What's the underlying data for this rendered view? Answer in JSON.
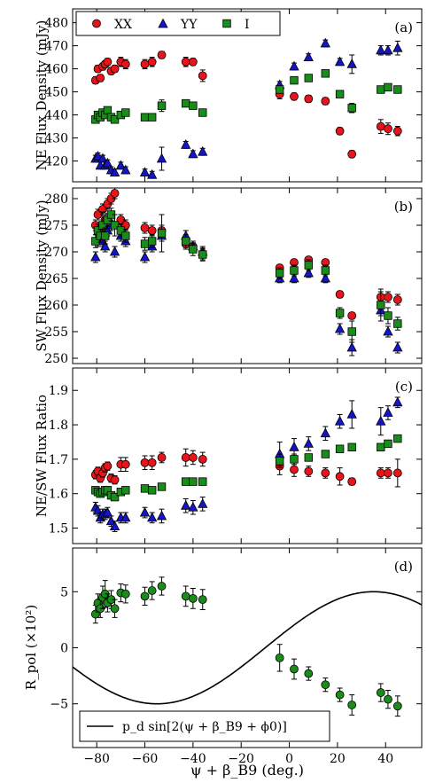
{
  "figure": {
    "xlabel": "ψ + β_B9 (deg.)",
    "xlim": [
      -90,
      55
    ],
    "xticks": [
      -80,
      -60,
      -40,
      -20,
      0,
      20,
      40
    ]
  },
  "colors": {
    "XX": "#e8141c",
    "YY": "#1414c8",
    "I": "#1a8c1a",
    "model": "#000000"
  },
  "chart_data": [
    {
      "id": "a",
      "type": "scatter",
      "panel_label": "(a)",
      "ylabel": "NE Flux Density (mJy)",
      "ylim": [
        411,
        486
      ],
      "yticks": [
        420,
        430,
        440,
        450,
        460,
        470,
        480
      ],
      "legend": {
        "placement": "top-left",
        "entries": [
          "XX",
          "YY",
          "I"
        ]
      },
      "x": [
        -80.5,
        -79.5,
        -78.5,
        -77.5,
        -76.5,
        -75.5,
        -74,
        -72.5,
        -70,
        -68,
        -60,
        -57,
        -53,
        -43,
        -40,
        -36,
        -4,
        2,
        8,
        15,
        21,
        26,
        38,
        41,
        45
      ],
      "series": [
        {
          "name": "XX",
          "marker": "circle",
          "values": [
            455,
            460,
            456,
            461,
            462,
            463,
            459,
            460,
            463,
            462,
            462,
            463,
            466,
            463,
            463,
            457,
            449,
            448,
            447,
            446,
            433,
            423,
            435,
            434,
            433
          ],
          "err": [
            1.5,
            1.5,
            1.5,
            1.5,
            1.5,
            1.5,
            1.5,
            1.5,
            2,
            2,
            2,
            2,
            1.5,
            2,
            1.5,
            2.5,
            2,
            1.5,
            1.5,
            1.5,
            1.5,
            1.5,
            3,
            2.5,
            2
          ]
        },
        {
          "name": "YY",
          "marker": "triangle",
          "values": [
            421,
            422,
            418,
            421,
            418,
            419,
            416,
            415,
            418,
            416,
            415,
            414,
            421,
            427,
            423,
            424,
            453,
            461,
            465,
            471,
            463,
            462,
            468,
            468,
            469
          ],
          "err": [
            1.5,
            1.5,
            1.5,
            1.5,
            1.5,
            1.5,
            1.5,
            1.5,
            1.5,
            1.5,
            1.5,
            1.5,
            5,
            1.5,
            1.5,
            1.5,
            1.5,
            1.5,
            1.5,
            1.5,
            1.5,
            4,
            2,
            2,
            3
          ]
        },
        {
          "name": "I",
          "marker": "square",
          "values": [
            438,
            440,
            439,
            441,
            440,
            442,
            439,
            438,
            440,
            441,
            439,
            439,
            444,
            445,
            444,
            441,
            451,
            455,
            456,
            458,
            449,
            443,
            451,
            452,
            451
          ],
          "err": [
            1,
            1,
            1,
            1,
            1,
            1,
            1,
            1,
            1,
            1,
            1,
            1,
            2.5,
            1,
            1,
            1,
            1,
            1,
            1,
            1,
            1,
            2,
            1.5,
            1.5,
            1.5
          ]
        }
      ]
    },
    {
      "id": "b",
      "type": "scatter",
      "panel_label": "(b)",
      "ylabel": "SW Flux Density (mJy)",
      "ylim": [
        249,
        282
      ],
      "yticks": [
        250,
        255,
        260,
        265,
        270,
        275,
        280
      ],
      "x": [
        -80.5,
        -79.5,
        -78.5,
        -77.5,
        -76.5,
        -75.5,
        -74,
        -72.5,
        -70,
        -68,
        -60,
        -57,
        -53,
        -43,
        -40,
        -36,
        -4,
        2,
        8,
        15,
        21,
        26,
        38,
        41,
        45
      ],
      "series": [
        {
          "name": "XX",
          "marker": "circle",
          "values": [
            275,
            277,
            274,
            278,
            276,
            279,
            280,
            281,
            276,
            275,
            274.5,
            274,
            274,
            271.5,
            271,
            269.5,
            267,
            268,
            268.5,
            268,
            262,
            258,
            261.5,
            261.5,
            261
          ],
          "err": [
            1,
            1,
            1,
            1,
            1,
            1,
            1,
            1,
            1,
            1,
            1,
            1,
            1,
            1,
            1,
            1,
            0.6,
            0.6,
            0.6,
            0.6,
            0.6,
            0.6,
            1,
            1,
            1
          ]
        },
        {
          "name": "YY",
          "marker": "triangle",
          "values": [
            269,
            272,
            273,
            272,
            271,
            274,
            275,
            270,
            273,
            272,
            269,
            271,
            273,
            273,
            271,
            270,
            265,
            265,
            266,
            265,
            255.5,
            252,
            259,
            255,
            252
          ],
          "err": [
            1,
            1,
            1,
            1,
            1,
            1,
            1,
            1,
            1,
            1,
            1,
            1,
            1,
            1,
            1,
            1,
            0.8,
            0.8,
            0.8,
            0.8,
            1,
            1.5,
            1,
            1,
            1
          ]
        },
        {
          "name": "I",
          "marker": "square",
          "values": [
            272,
            274,
            273,
            275,
            273,
            276,
            277,
            275,
            274,
            273,
            271.5,
            272,
            273.5,
            272,
            270.5,
            269.5,
            266,
            266.5,
            267.5,
            266.5,
            258.5,
            255,
            260,
            258,
            256.5
          ],
          "err": [
            1.2,
            1.2,
            1.2,
            2.5,
            1.5,
            1.2,
            1.2,
            2,
            1.2,
            1.2,
            1.2,
            1.2,
            3.5,
            1.2,
            1.2,
            1.2,
            1,
            1,
            1,
            1,
            1,
            2,
            3,
            1.5,
            1.2
          ]
        }
      ]
    },
    {
      "id": "c",
      "type": "scatter",
      "panel_label": "(c)",
      "ylabel": "NE/SW Flux Ratio",
      "ylim": [
        1.455,
        1.965
      ],
      "yticks": [
        1.5,
        1.6,
        1.7,
        1.8,
        1.9
      ],
      "x": [
        -80.5,
        -79.5,
        -78.5,
        -77.5,
        -76.5,
        -75.5,
        -74,
        -72.5,
        -70,
        -68,
        -60,
        -57,
        -53,
        -43,
        -40,
        -36,
        -4,
        2,
        8,
        15,
        21,
        26,
        38,
        41,
        45
      ],
      "series": [
        {
          "name": "XX",
          "marker": "circle",
          "values": [
            1.655,
            1.665,
            1.645,
            1.66,
            1.675,
            1.68,
            1.645,
            1.64,
            1.685,
            1.685,
            1.69,
            1.69,
            1.705,
            1.705,
            1.705,
            1.7,
            1.68,
            1.67,
            1.665,
            1.66,
            1.65,
            1.635,
            1.66,
            1.66,
            1.66
          ],
          "err": [
            0.012,
            0.012,
            0.012,
            0.012,
            0.012,
            0.012,
            0.012,
            0.012,
            0.02,
            0.02,
            0.02,
            0.02,
            0.015,
            0.025,
            0.02,
            0.02,
            0.025,
            0.02,
            0.015,
            0.015,
            0.025,
            0.01,
            0.015,
            0.015,
            0.04
          ]
        },
        {
          "name": "YY",
          "marker": "triangle",
          "values": [
            1.56,
            1.55,
            1.53,
            1.54,
            1.54,
            1.545,
            1.52,
            1.505,
            1.53,
            1.53,
            1.545,
            1.53,
            1.535,
            1.565,
            1.56,
            1.57,
            1.715,
            1.735,
            1.745,
            1.775,
            1.81,
            1.83,
            1.81,
            1.835,
            1.865
          ],
          "err": [
            0.015,
            0.015,
            0.015,
            0.015,
            0.015,
            0.015,
            0.015,
            0.015,
            0.015,
            0.015,
            0.015,
            0.015,
            0.02,
            0.02,
            0.02,
            0.02,
            0.035,
            0.025,
            0.02,
            0.02,
            0.02,
            0.04,
            0.04,
            0.02,
            0.015
          ]
        },
        {
          "name": "I",
          "marker": "square",
          "values": [
            1.61,
            1.605,
            1.6,
            1.605,
            1.61,
            1.61,
            1.595,
            1.59,
            1.605,
            1.61,
            1.615,
            1.61,
            1.62,
            1.635,
            1.635,
            1.635,
            1.695,
            1.7,
            1.705,
            1.715,
            1.73,
            1.735,
            1.735,
            1.745,
            1.76
          ],
          "err": [
            0.01,
            0.01,
            0.01,
            0.01,
            0.01,
            0.01,
            0.01,
            0.01,
            0.01,
            0.01,
            0.01,
            0.01,
            0.01,
            0.01,
            0.01,
            0.01,
            0.02,
            0.015,
            0.01,
            0.01,
            0.01,
            0.01,
            0.01,
            0.01,
            0.01
          ]
        }
      ]
    },
    {
      "id": "d",
      "type": "scatter",
      "panel_label": "(d)",
      "ylabel": "R_pol (×10²)",
      "ylim": [
        -8.9,
        8.9
      ],
      "yticks": [
        -5,
        0,
        5
      ],
      "legend": {
        "placement": "bottom-left",
        "entries": [
          "p_d sin[2(ψ + β_B9 + ϕ0)]"
        ]
      },
      "series": [
        {
          "name": "R_pol",
          "marker": "circle",
          "x": [
            -80.5,
            -79.5,
            -78.5,
            -77.5,
            -76.5,
            -75.5,
            -74,
            -72.5,
            -70,
            -68,
            -60,
            -57,
            -53,
            -43,
            -40,
            -36,
            -4,
            2,
            8,
            15,
            21,
            26,
            38,
            41,
            45
          ],
          "values": [
            3.0,
            4.0,
            3.5,
            4.5,
            4.8,
            4.0,
            4.3,
            3.5,
            4.9,
            4.8,
            4.6,
            5.1,
            5.5,
            4.6,
            4.4,
            4.3,
            -0.9,
            -1.9,
            -2.3,
            -3.3,
            -4.2,
            -5.1,
            -4.0,
            -4.6,
            -5.2
          ],
          "err": [
            0.8,
            0.8,
            0.8,
            1.0,
            1.2,
            0.8,
            0.8,
            0.8,
            0.8,
            0.8,
            0.8,
            0.8,
            0.8,
            0.9,
            0.9,
            0.9,
            1.2,
            0.9,
            0.6,
            0.6,
            0.6,
            0.9,
            0.8,
            0.8,
            0.9
          ]
        },
        {
          "name": "p_d sin[2(ψ + β_B9 + ϕ0)]",
          "type": "line",
          "amplitude": 5.0,
          "phase_deg": 10
        }
      ]
    }
  ]
}
